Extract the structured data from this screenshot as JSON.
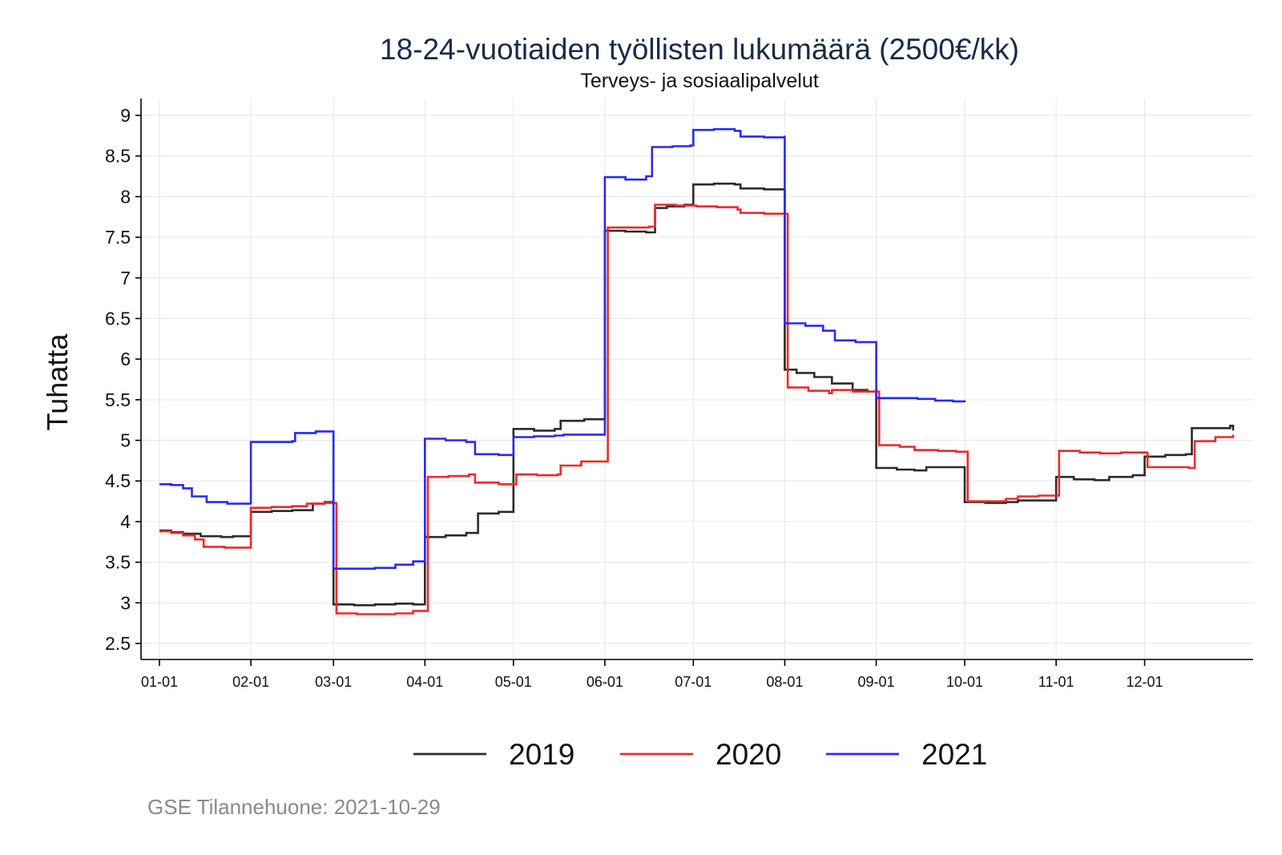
{
  "chart_data": {
    "type": "line",
    "step": true,
    "title": "18-24-vuotiaiden työllisten lukumäärä (2500€/kk)",
    "subtitle": "Terveys- ja sosiaalipalvelut",
    "xlabel": "",
    "ylabel": "Tuhatta",
    "ylim": [
      2.5,
      9
    ],
    "yticks": [
      "2.5",
      "3",
      "3.5",
      "4",
      "4.5",
      "5",
      "5.5",
      "6",
      "6.5",
      "7",
      "7.5",
      "8",
      "8.5",
      "9"
    ],
    "xticks": [
      "01-01",
      "02-01",
      "03-01",
      "04-01",
      "05-01",
      "06-01",
      "07-01",
      "08-01",
      "09-01",
      "10-01",
      "11-01",
      "12-01"
    ],
    "grid": true,
    "legend_position": "bottom",
    "series": [
      {
        "name": "2019",
        "color": "#2b2b2b",
        "points": [
          [
            0,
            3.89
          ],
          [
            4,
            3.87
          ],
          [
            8,
            3.85
          ],
          [
            14,
            3.82
          ],
          [
            21,
            3.81
          ],
          [
            25,
            3.82
          ],
          [
            31,
            3.81
          ],
          [
            31,
            4.12
          ],
          [
            38,
            4.13
          ],
          [
            45,
            4.14
          ],
          [
            52,
            4.22
          ],
          [
            56,
            4.24
          ],
          [
            59,
            4.26
          ],
          [
            59,
            2.98
          ],
          [
            66,
            2.97
          ],
          [
            73,
            2.98
          ],
          [
            80,
            2.99
          ],
          [
            86,
            2.98
          ],
          [
            90,
            2.97
          ],
          [
            90,
            3.81
          ],
          [
            97,
            3.83
          ],
          [
            104,
            3.86
          ],
          [
            108,
            3.86
          ],
          [
            108,
            4.1
          ],
          [
            115,
            4.12
          ],
          [
            120,
            4.14
          ],
          [
            120,
            5.14
          ],
          [
            127,
            5.12
          ],
          [
            134,
            5.14
          ],
          [
            136,
            5.24
          ],
          [
            144,
            5.26
          ],
          [
            151,
            5.28
          ],
          [
            151,
            7.58
          ],
          [
            158,
            7.57
          ],
          [
            165,
            7.56
          ],
          [
            168,
            7.86
          ],
          [
            172,
            7.88
          ],
          [
            178,
            7.9
          ],
          [
            181,
            7.9
          ],
          [
            181,
            8.15
          ],
          [
            188,
            8.16
          ],
          [
            195,
            8.15
          ],
          [
            197,
            8.1
          ],
          [
            205,
            8.09
          ],
          [
            212,
            8.1
          ],
          [
            212,
            5.87
          ],
          [
            216,
            5.83
          ],
          [
            222,
            5.78
          ],
          [
            228,
            5.7
          ],
          [
            235,
            5.62
          ],
          [
            240,
            5.6
          ],
          [
            243,
            5.57
          ],
          [
            243,
            4.66
          ],
          [
            250,
            4.64
          ],
          [
            256,
            4.63
          ],
          [
            260,
            4.67
          ],
          [
            268,
            4.67
          ],
          [
            273,
            4.67
          ],
          [
            273,
            4.24
          ],
          [
            280,
            4.23
          ],
          [
            287,
            4.24
          ],
          [
            291,
            4.26
          ],
          [
            298,
            4.26
          ],
          [
            304,
            4.27
          ],
          [
            304,
            4.55
          ],
          [
            310,
            4.52
          ],
          [
            317,
            4.51
          ],
          [
            322,
            4.55
          ],
          [
            330,
            4.57
          ],
          [
            334,
            4.59
          ],
          [
            334,
            4.8
          ],
          [
            341,
            4.82
          ],
          [
            348,
            4.83
          ],
          [
            350,
            5.15
          ],
          [
            357,
            5.15
          ],
          [
            363,
            5.18
          ],
          [
            364,
            5.12
          ]
        ]
      },
      {
        "name": "2020",
        "color": "#ee2a2a",
        "points": [
          [
            0,
            3.88
          ],
          [
            4,
            3.86
          ],
          [
            8,
            3.83
          ],
          [
            12,
            3.78
          ],
          [
            15,
            3.69
          ],
          [
            22,
            3.68
          ],
          [
            31,
            3.69
          ],
          [
            31,
            4.17
          ],
          [
            38,
            4.18
          ],
          [
            45,
            4.19
          ],
          [
            50,
            4.22
          ],
          [
            56,
            4.23
          ],
          [
            60,
            4.24
          ],
          [
            60,
            2.87
          ],
          [
            67,
            2.86
          ],
          [
            74,
            2.86
          ],
          [
            80,
            2.87
          ],
          [
            86,
            2.9
          ],
          [
            91,
            2.94
          ],
          [
            91,
            4.55
          ],
          [
            98,
            4.56
          ],
          [
            105,
            4.58
          ],
          [
            107,
            4.48
          ],
          [
            115,
            4.46
          ],
          [
            121,
            4.47
          ],
          [
            121,
            4.58
          ],
          [
            128,
            4.57
          ],
          [
            135,
            4.58
          ],
          [
            136,
            4.69
          ],
          [
            143,
            4.74
          ],
          [
            152,
            4.75
          ],
          [
            152,
            7.62
          ],
          [
            159,
            7.62
          ],
          [
            166,
            7.63
          ],
          [
            168,
            7.9
          ],
          [
            175,
            7.89
          ],
          [
            182,
            7.88
          ],
          [
            189,
            7.87
          ],
          [
            196,
            7.84
          ],
          [
            197,
            7.8
          ],
          [
            205,
            7.79
          ],
          [
            213,
            7.8
          ],
          [
            213,
            5.65
          ],
          [
            220,
            5.61
          ],
          [
            227,
            5.58
          ],
          [
            228,
            5.62
          ],
          [
            235,
            5.6
          ],
          [
            244,
            5.56
          ],
          [
            244,
            4.94
          ],
          [
            251,
            4.92
          ],
          [
            256,
            4.88
          ],
          [
            264,
            4.87
          ],
          [
            270,
            4.86
          ],
          [
            274,
            4.86
          ],
          [
            274,
            4.25
          ],
          [
            281,
            4.25
          ],
          [
            287,
            4.28
          ],
          [
            291,
            4.31
          ],
          [
            298,
            4.32
          ],
          [
            305,
            4.32
          ],
          [
            305,
            4.87
          ],
          [
            312,
            4.85
          ],
          [
            319,
            4.84
          ],
          [
            326,
            4.85
          ],
          [
            335,
            4.86
          ],
          [
            335,
            4.67
          ],
          [
            342,
            4.67
          ],
          [
            349,
            4.66
          ],
          [
            351,
            4.73
          ],
          [
            351,
            4.99
          ],
          [
            358,
            5.04
          ],
          [
            364,
            5.07
          ]
        ]
      },
      {
        "name": "2021",
        "color": "#2a2aee",
        "points": [
          [
            0,
            4.46
          ],
          [
            4,
            4.45
          ],
          [
            8,
            4.41
          ],
          [
            11,
            4.31
          ],
          [
            16,
            4.24
          ],
          [
            23,
            4.22
          ],
          [
            31,
            4.21
          ],
          [
            31,
            4.98
          ],
          [
            38,
            4.98
          ],
          [
            45,
            4.99
          ],
          [
            46,
            5.09
          ],
          [
            53,
            5.11
          ],
          [
            59,
            5.11
          ],
          [
            59,
            3.42
          ],
          [
            66,
            3.42
          ],
          [
            73,
            3.43
          ],
          [
            80,
            3.47
          ],
          [
            86,
            3.51
          ],
          [
            90,
            3.52
          ],
          [
            90,
            5.02
          ],
          [
            97,
            5.0
          ],
          [
            104,
            4.98
          ],
          [
            107,
            4.83
          ],
          [
            115,
            4.82
          ],
          [
            120,
            4.85
          ],
          [
            120,
            5.04
          ],
          [
            127,
            5.05
          ],
          [
            134,
            5.06
          ],
          [
            137,
            5.07
          ],
          [
            144,
            5.07
          ],
          [
            151,
            5.08
          ],
          [
            151,
            8.24
          ],
          [
            158,
            8.21
          ],
          [
            165,
            8.25
          ],
          [
            167,
            8.61
          ],
          [
            174,
            8.62
          ],
          [
            180,
            8.63
          ],
          [
            181,
            8.82
          ],
          [
            188,
            8.83
          ],
          [
            195,
            8.81
          ],
          [
            197,
            8.74
          ],
          [
            205,
            8.73
          ],
          [
            212,
            8.75
          ],
          [
            212,
            6.44
          ],
          [
            219,
            6.41
          ],
          [
            225,
            6.35
          ],
          [
            229,
            6.23
          ],
          [
            236,
            6.21
          ],
          [
            243,
            6.17
          ],
          [
            243,
            5.52
          ],
          [
            250,
            5.52
          ],
          [
            257,
            5.51
          ],
          [
            263,
            5.49
          ],
          [
            269,
            5.48
          ],
          [
            273,
            5.47
          ]
        ]
      }
    ]
  },
  "source_note": "GSE Tilannehuone: 2021-10-29"
}
